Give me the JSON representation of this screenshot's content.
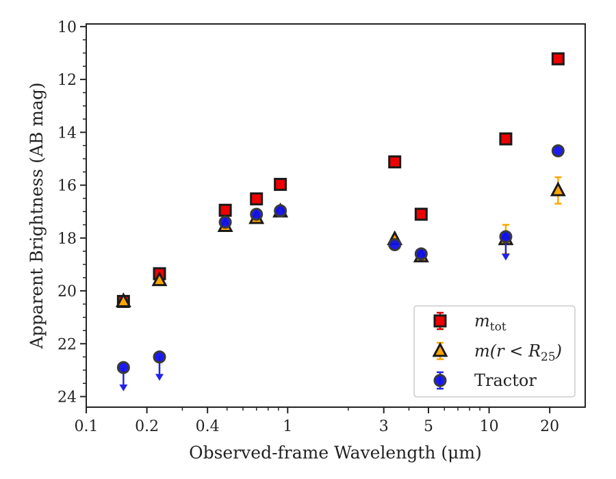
{
  "chart_data": {
    "type": "scatter",
    "title": "",
    "xlabel": "Observed-frame Wavelength (μm)",
    "ylabel": "Apparent Brightness (AB mag)",
    "x_scale": "log",
    "xlim": [
      0.1,
      30
    ],
    "ylim": [
      24.4,
      9.9
    ],
    "y_inverted": true,
    "x_ticks": [
      0.1,
      0.2,
      0.4,
      1,
      3,
      5,
      10,
      20
    ],
    "x_tick_labels": [
      "0.1",
      "0.2",
      "0.4",
      "1",
      "3",
      "5",
      "10",
      "20"
    ],
    "y_ticks": [
      10,
      12,
      14,
      16,
      18,
      20,
      22,
      24
    ],
    "y_tick_labels": [
      "10",
      "12",
      "14",
      "16",
      "18",
      "20",
      "22",
      "24"
    ],
    "grid": false,
    "legend_position": "lower-right",
    "series": [
      {
        "name": "m_tot",
        "marker": "square",
        "color": "#ee0000",
        "edge_color": "#1a1a1a",
        "errorbar_color": "#dd0000",
        "points": [
          {
            "x": 0.153,
            "y": 20.4
          },
          {
            "x": 0.231,
            "y": 19.35
          },
          {
            "x": 0.49,
            "y": 16.95
          },
          {
            "x": 0.7,
            "y": 16.52
          },
          {
            "x": 0.92,
            "y": 15.97
          },
          {
            "x": 3.4,
            "y": 15.12
          },
          {
            "x": 4.6,
            "y": 17.1
          },
          {
            "x": 12.1,
            "y": 14.25
          },
          {
            "x": 22.0,
            "y": 11.22
          }
        ]
      },
      {
        "name": "m(r<R25)",
        "marker": "triangle",
        "color": "#ffa500",
        "edge_color": "#1a1a1a",
        "errorbar_color": "#ffa500",
        "points": [
          {
            "x": 0.153,
            "y": 20.4
          },
          {
            "x": 0.231,
            "y": 19.6
          },
          {
            "x": 0.49,
            "y": 17.55
          },
          {
            "x": 0.7,
            "y": 17.25
          },
          {
            "x": 0.92,
            "y": 17.0
          },
          {
            "x": 3.4,
            "y": 18.05
          },
          {
            "x": 4.6,
            "y": 18.7
          },
          {
            "x": 12.1,
            "y": 18.05,
            "err": 0.55
          },
          {
            "x": 22.0,
            "y": 16.2,
            "err": 0.5
          }
        ]
      },
      {
        "name": "Tractor",
        "marker": "circle",
        "color": "#1010ee",
        "edge_color": "#3a3a3a",
        "errorbar_color": "#2222ee",
        "points": [
          {
            "x": 0.153,
            "y": 22.9,
            "upper_limit": true
          },
          {
            "x": 0.231,
            "y": 22.5,
            "upper_limit": true
          },
          {
            "x": 0.49,
            "y": 17.4
          },
          {
            "x": 0.7,
            "y": 17.1
          },
          {
            "x": 0.92,
            "y": 16.97
          },
          {
            "x": 3.4,
            "y": 18.25
          },
          {
            "x": 4.6,
            "y": 18.6
          },
          {
            "x": 12.1,
            "y": 17.95,
            "upper_limit": true
          },
          {
            "x": 22.0,
            "y": 14.7
          }
        ]
      }
    ],
    "legend": [
      {
        "label": "m",
        "sub": "tot",
        "marker": "square"
      },
      {
        "label": "m(r < R",
        "sub": "25",
        "suffix": ")",
        "marker": "triangle"
      },
      {
        "label": "Tractor",
        "marker": "circle"
      }
    ]
  }
}
